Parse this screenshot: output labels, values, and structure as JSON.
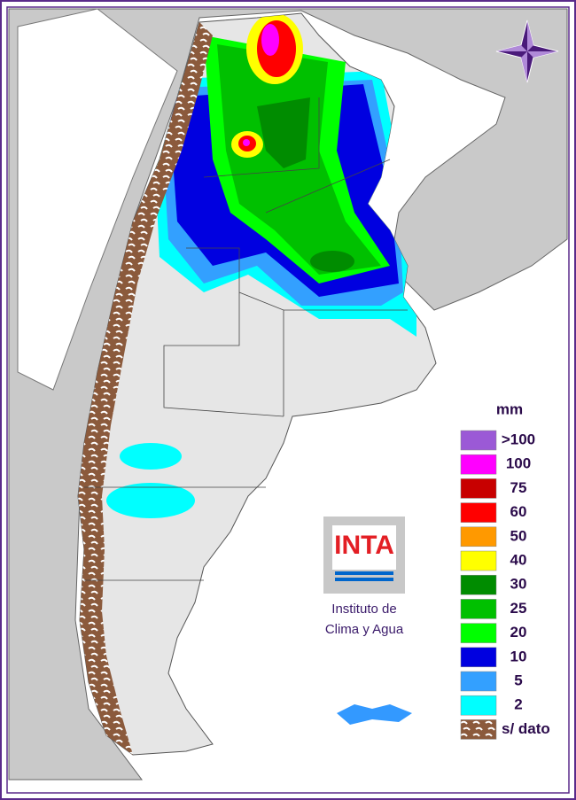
{
  "legend": {
    "title": "mm",
    "items": [
      {
        "label": ">100",
        "color": "#9b59d6"
      },
      {
        "label": "100",
        "color": "#ff00ff"
      },
      {
        "label": "75",
        "color": "#c80000"
      },
      {
        "label": "60",
        "color": "#ff0000"
      },
      {
        "label": "50",
        "color": "#ff9900"
      },
      {
        "label": "40",
        "color": "#ffff00"
      },
      {
        "label": "30",
        "color": "#008c00"
      },
      {
        "label": "25",
        "color": "#00c000"
      },
      {
        "label": "20",
        "color": "#00ff00"
      },
      {
        "label": "10",
        "color": "#0000e0"
      },
      {
        "label": "5",
        "color": "#33a0ff"
      },
      {
        "label": "2",
        "color": "#00ffff"
      },
      {
        "label": "s/ dato",
        "color": "#8b5a3c"
      }
    ]
  },
  "logo": {
    "name": "INTA",
    "line1": "Instituto de",
    "line2": "Clima y Agua"
  }
}
